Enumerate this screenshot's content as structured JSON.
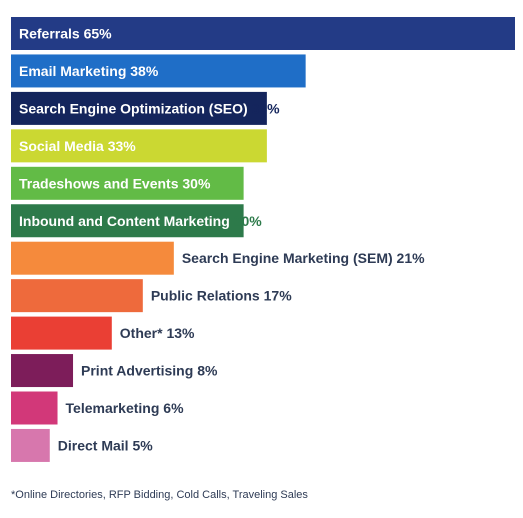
{
  "chart_data": {
    "type": "bar",
    "orientation": "horizontal",
    "xlim": [
      0,
      65
    ],
    "grid": false,
    "categories": [
      "Referrals",
      "Email Marketing",
      "Search Engine Optimization (SEO)",
      "Social Media",
      "Tradeshows and Events",
      "Inbound and Content Marketing",
      "Search Engine Marketing (SEM)",
      "Public Relations",
      "Other*",
      "Print Advertising",
      "Telemarketing",
      "Direct Mail"
    ],
    "values": [
      65,
      38,
      33,
      33,
      30,
      30,
      21,
      17,
      13,
      8,
      6,
      5
    ],
    "value_labels": [
      "65%",
      "38%",
      "33%",
      "33%",
      "30%",
      "30%",
      "21%",
      "17%",
      "13%",
      "8%",
      "6%",
      "5%"
    ],
    "colors": [
      "#233b86",
      "#1f6ec7",
      "#14255c",
      "#cbd832",
      "#62bb46",
      "#2d7a4a",
      "#f58a3c",
      "#ee6a3c",
      "#ea3f34",
      "#7d1d5a",
      "#d23879",
      "#d777ad"
    ],
    "label_colors": [
      "#ffffff",
      "#ffffff",
      "#ffffff",
      "#ffffff",
      "#ffffff",
      "#ffffff",
      "#2e3b55",
      "#2e3b55",
      "#2e3b55",
      "#2e3b55",
      "#2e3b55",
      "#2e3b55"
    ],
    "value_colors": [
      "#ffffff",
      "#ffffff",
      "#14255c",
      "#ffffff",
      "#ffffff",
      "#2d7a4a",
      "#2e3b55",
      "#2e3b55",
      "#2e3b55",
      "#2e3b55",
      "#2e3b55",
      "#2e3b55"
    ],
    "label_inside": [
      true,
      true,
      true,
      true,
      true,
      true,
      false,
      false,
      false,
      false,
      false,
      false
    ]
  },
  "footnote": "*Online Directories, RFP Bidding, Cold Calls, Traveling Sales"
}
